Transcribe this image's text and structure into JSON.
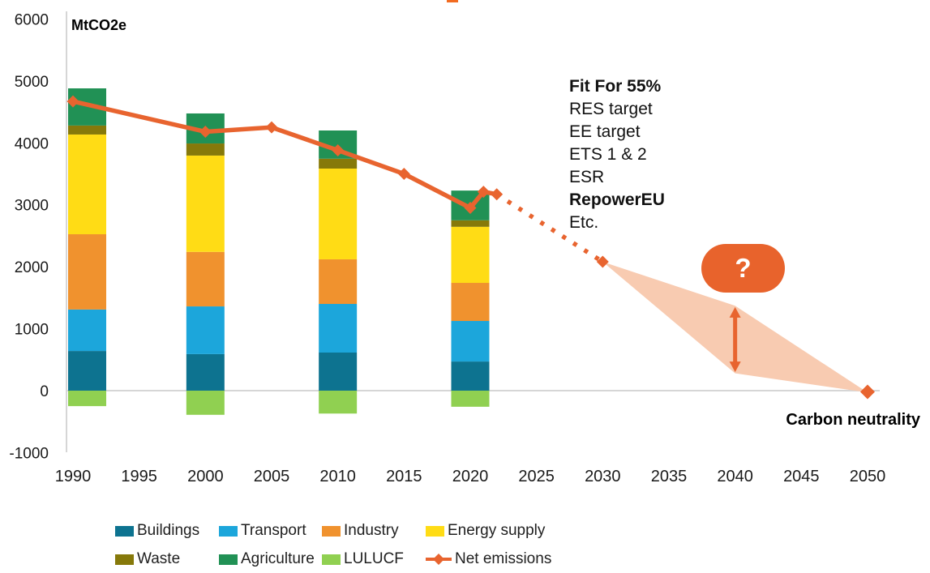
{
  "page": {
    "unit_label": "MtCO2e",
    "background": "#ffffff"
  },
  "colors": {
    "buildings": "#0D7390",
    "transport": "#1CA6DB",
    "industry": "#F0922E",
    "energy_supply": "#FFDC15",
    "waste": "#86790A",
    "agriculture": "#219155",
    "lulucf": "#90D051",
    "net_emissions": "#E8642F",
    "wedge": "#F8CBB1",
    "bubble": "#E8632C",
    "gridline": "#D6D6D6",
    "axis": "#D6D6D6",
    "text": "#1a1a1a",
    "title_fragment": "#F26B21"
  },
  "chart_data": {
    "type": "bar",
    "subtype": "stacked-bar-with-line",
    "unit": "MtCO2e",
    "title": "",
    "xlabel": "",
    "ylabel": "MtCO2e",
    "ylim": [
      -1000,
      6000
    ],
    "grid": "zero-line-only",
    "y_ticks": [
      6000,
      5000,
      4000,
      3000,
      2000,
      1000,
      0,
      -1000
    ],
    "x_ticks": [
      1990,
      1995,
      2000,
      2005,
      2010,
      2015,
      2020,
      2025,
      2030,
      2035,
      2040,
      2045,
      2050
    ],
    "bar_years": [
      1990,
      2000,
      2010,
      2020
    ],
    "series": [
      {
        "name": "Buildings",
        "color_key": "buildings",
        "values": [
          640,
          590,
          615,
          470
        ]
      },
      {
        "name": "Transport",
        "color_key": "transport",
        "values": [
          670,
          770,
          785,
          655
        ]
      },
      {
        "name": "Industry",
        "color_key": "industry",
        "values": [
          1215,
          880,
          720,
          615
        ]
      },
      {
        "name": "Energy supply",
        "color_key": "energy_supply",
        "values": [
          1610,
          1555,
          1465,
          905
        ]
      },
      {
        "name": "Waste",
        "color_key": "waste",
        "values": [
          145,
          195,
          160,
          105
        ]
      },
      {
        "name": "Agriculture",
        "color_key": "agriculture",
        "values": [
          600,
          485,
          455,
          480
        ]
      },
      {
        "name": "LULUCF",
        "color_key": "lulucf",
        "values": [
          -250,
          -390,
          -370,
          -260
        ]
      }
    ],
    "net_emissions": {
      "name": "Net emissions",
      "solid_points": [
        [
          1990,
          4670
        ],
        [
          2000,
          4180
        ],
        [
          2005,
          4250
        ],
        [
          2010,
          3880
        ],
        [
          2015,
          3500
        ],
        [
          2020,
          2950
        ],
        [
          2021,
          3210
        ],
        [
          2022,
          3170
        ]
      ],
      "dotted_points": [
        [
          2022,
          3170
        ],
        [
          2030,
          2080
        ]
      ],
      "extra_markers": [
        [
          2030,
          2080
        ],
        [
          2050,
          -20
        ]
      ]
    },
    "projection_wedge": [
      [
        2030,
        2080
      ],
      [
        2040,
        1370
      ],
      [
        2050,
        -30
      ],
      [
        2040,
        280
      ]
    ],
    "uncertainty_arrow": {
      "year": 2040,
      "from": 300,
      "to": 1350
    }
  },
  "annotations": {
    "fit_block": {
      "lines": [
        {
          "text": "Fit For 55%",
          "bold": true
        },
        {
          "text": "RES target",
          "bold": false
        },
        {
          "text": "EE target",
          "bold": false
        },
        {
          "text": "ETS 1 & 2",
          "bold": false
        },
        {
          "text": "ESR",
          "bold": false
        },
        {
          "text": "RepowerEU",
          "bold": true
        },
        {
          "text": "Etc.",
          "bold": false
        }
      ]
    },
    "carbon_neutrality": "Carbon neutrality",
    "question_mark": "?"
  },
  "legend": {
    "items": [
      {
        "label": "Buildings",
        "color_key": "buildings",
        "symbol": "rect",
        "col": 0,
        "row": 0
      },
      {
        "label": "Transport",
        "color_key": "transport",
        "symbol": "rect",
        "col": 1,
        "row": 0
      },
      {
        "label": "Industry",
        "color_key": "industry",
        "symbol": "rect",
        "col": 2,
        "row": 0
      },
      {
        "label": "Energy supply",
        "color_key": "energy_supply",
        "symbol": "rect",
        "col": 3,
        "row": 0
      },
      {
        "label": "Waste",
        "color_key": "waste",
        "symbol": "rect",
        "col": 0,
        "row": 1
      },
      {
        "label": "Agriculture",
        "color_key": "agriculture",
        "symbol": "rect",
        "col": 1,
        "row": 1
      },
      {
        "label": "LULUCF",
        "color_key": "lulucf",
        "symbol": "rect",
        "col": 2,
        "row": 1
      },
      {
        "label": "Net emissions",
        "color_key": "net_emissions",
        "symbol": "line-diamond",
        "col": 3,
        "row": 1
      }
    ]
  }
}
